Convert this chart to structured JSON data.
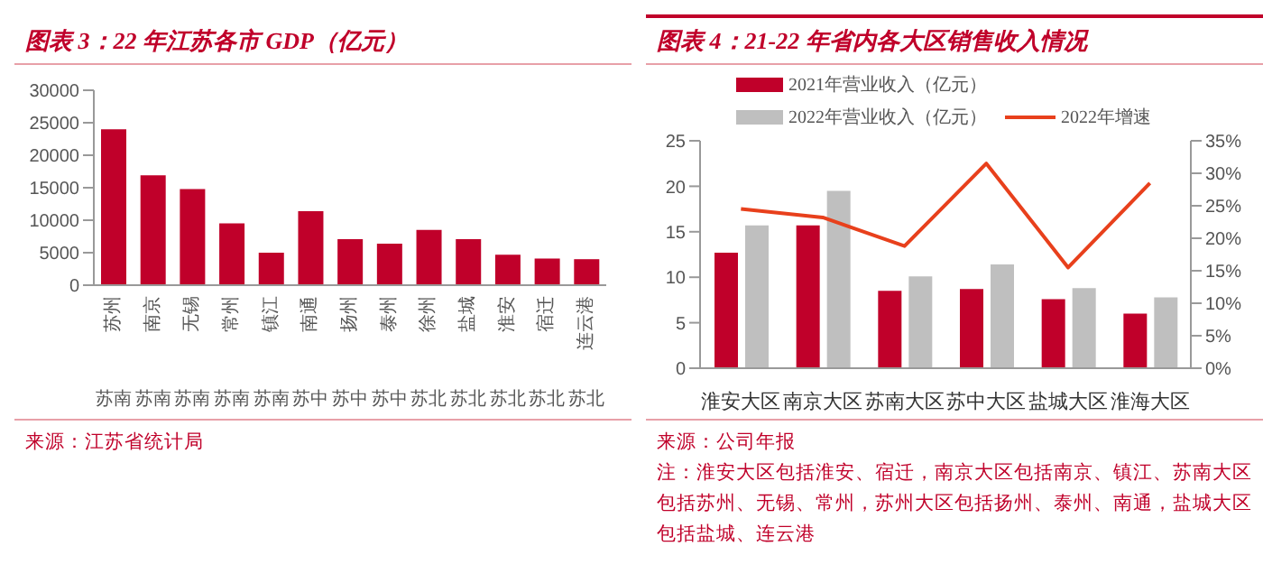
{
  "chart_data": [
    {
      "type": "bar",
      "title": "图表 3：22 年江苏各市 GDP（亿元）",
      "categories": [
        "苏州",
        "南京",
        "无锡",
        "常州",
        "镇江",
        "南通",
        "扬州",
        "泰州",
        "徐州",
        "盐城",
        "淮安",
        "宿迁",
        "连云港"
      ],
      "values": [
        24000,
        16900,
        14800,
        9500,
        5000,
        11400,
        7100,
        6400,
        8500,
        7100,
        4700,
        4100,
        4000
      ],
      "color": "#c0002a",
      "ylim": [
        0,
        30000
      ],
      "yticks": [
        0,
        5000,
        10000,
        15000,
        20000,
        25000,
        30000
      ],
      "grid": false,
      "legend": false,
      "annotations": [
        "苏南",
        "苏南",
        "苏南",
        "苏南",
        "苏南",
        "苏中",
        "苏中",
        "苏中",
        "苏北",
        "苏北",
        "苏北",
        "苏北",
        "苏北",
        "来源：江苏省统计局"
      ]
    },
    {
      "type": "bar",
      "title": "图表 4：21-22 年省内各大区销售收入情况",
      "categories": [
        "淮安大区",
        "南京大区",
        "苏南大区",
        "苏中大区",
        "盐城大区",
        "淮海大区"
      ],
      "series": [
        {
          "name": "2021年营业收入（亿元）",
          "color": "#c0002a",
          "values": [
            12.7,
            15.7,
            8.5,
            8.7,
            7.6,
            6.0
          ]
        },
        {
          "name": "2022年营业收入（亿元）",
          "color": "#bfbfbf",
          "values": [
            15.7,
            19.5,
            10.1,
            11.4,
            8.8,
            7.8
          ]
        },
        {
          "name": "2022年增速",
          "type": "line",
          "axis": "y2",
          "color": "#e8401c",
          "marker": "none",
          "values": [
            24.5,
            23.2,
            18.8,
            31.5,
            15.5,
            28.5
          ]
        }
      ],
      "ylim": [
        0,
        25
      ],
      "yticks": [
        0,
        5,
        10,
        15,
        20,
        25
      ],
      "y2lim": [
        0,
        35
      ],
      "y2ticks": [
        {
          "value": 0,
          "label": "0%"
        },
        {
          "value": 5,
          "label": "5%"
        },
        {
          "value": 10,
          "label": "10%"
        },
        {
          "value": 15,
          "label": "15%"
        },
        {
          "value": 20,
          "label": "20%"
        },
        {
          "value": 25,
          "label": "25%"
        },
        {
          "value": 30,
          "label": "30%"
        },
        {
          "value": 35,
          "label": "35%"
        }
      ],
      "grid": false,
      "legend": "top",
      "annotations": [
        "来源：公司年报",
        "注：淮安大区包括淮安、宿迁，南京大区包括南京、镇江、苏南大区包括苏州、无锡、常州，苏州大区包括扬州、泰州、南通，盐城大区包括盐城、连云港"
      ]
    }
  ]
}
